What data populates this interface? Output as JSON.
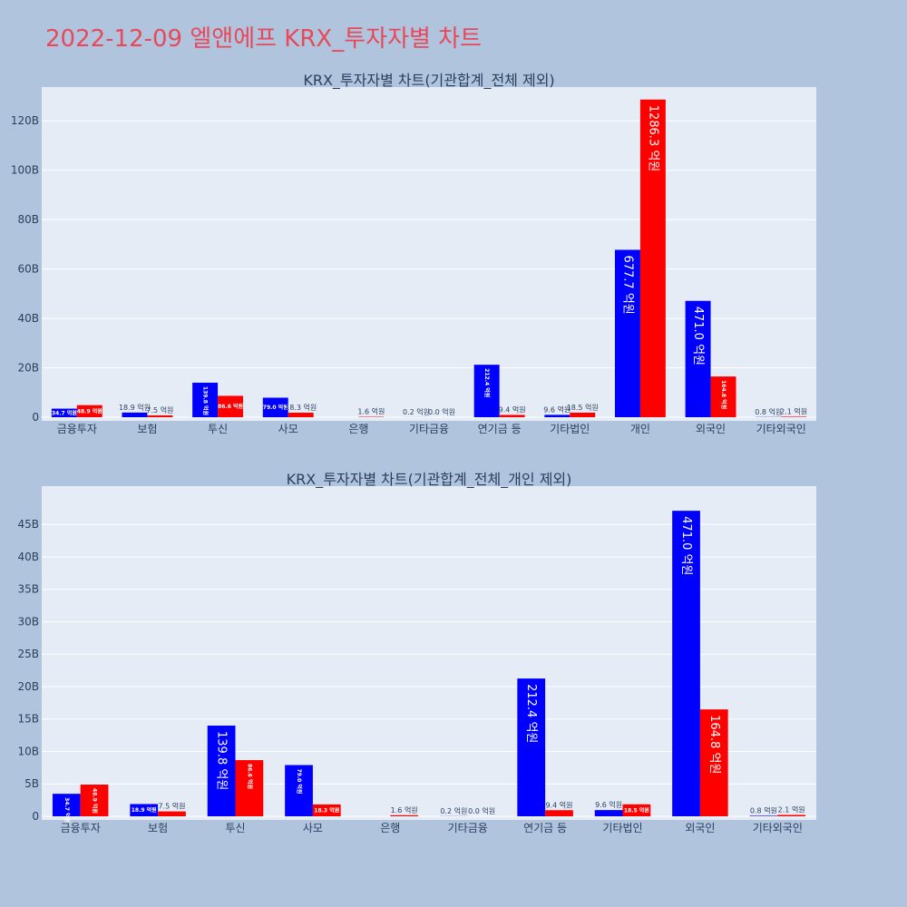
{
  "title": "2022-12-09 엘앤에프 KRX_투자자별 차트",
  "colors": {
    "series_1": "#0000ff",
    "series_2": "#ff0000",
    "plot_bg": "#e5ecf6",
    "page_bg": "#b0c4de",
    "title": "#e8495a"
  },
  "chart_data": [
    {
      "type": "bar",
      "title": "KRX_투자자별 차트(기관합계_전체 제외)",
      "categories": [
        "금융투자",
        "보험",
        "투신",
        "사모",
        "은행",
        "기타금융",
        "연기금 등",
        "기타법인",
        "개인",
        "외국인",
        "기타외국인"
      ],
      "ylim": [
        0,
        130
      ],
      "yticks": [
        0,
        20,
        40,
        60,
        80,
        100,
        120
      ],
      "ytick_labels": [
        "0",
        "20B",
        "40B",
        "60B",
        "80B",
        "100B",
        "120B"
      ],
      "series": [
        {
          "values": [
            3.47,
            1.89,
            13.98,
            7.9,
            0.0,
            0.02,
            21.24,
            0.96,
            67.77,
            47.1,
            0.08
          ],
          "labels": [
            "34.7 억원",
            "18.9 억원",
            "139.8 억원",
            "79.0 억원",
            "",
            "0.2 억원",
            "212.4 억원",
            "9.6 억원",
            "677.7 억원",
            "471.0 억원",
            "0.8 억원"
          ]
        },
        {
          "values": [
            4.89,
            0.75,
            8.66,
            1.83,
            0.16,
            0.0,
            0.94,
            1.85,
            128.63,
            16.48,
            0.21
          ],
          "labels": [
            "48.9 억원",
            "7.5 억원",
            "86.6 억원",
            "18.3 억원",
            "1.6 억원",
            "0.0 억원",
            "9.4 억원",
            "18.5 억원",
            "1286.3 억원",
            "164.8 억원",
            "2.1 억원"
          ]
        }
      ]
    },
    {
      "type": "bar",
      "title": "KRX_투자자별 차트(기관합계_전체_개인 제외)",
      "categories": [
        "금융투자",
        "보험",
        "투신",
        "사모",
        "은행",
        "기타금융",
        "연기금 등",
        "기타법인",
        "외국인",
        "기타외국인"
      ],
      "ylim": [
        0,
        49.5
      ],
      "yticks": [
        0,
        5,
        10,
        15,
        20,
        25,
        30,
        35,
        40,
        45
      ],
      "ytick_labels": [
        "0",
        "5B",
        "10B",
        "15B",
        "20B",
        "25B",
        "30B",
        "35B",
        "40B",
        "45B"
      ],
      "series": [
        {
          "values": [
            3.47,
            1.89,
            13.98,
            7.9,
            0.0,
            0.02,
            21.24,
            0.96,
            47.1,
            0.08
          ],
          "labels": [
            "34.7 억원",
            "18.9 억원",
            "139.8 억원",
            "79.0 억원",
            "",
            "0.2 억원",
            "212.4 억원",
            "9.6 억원",
            "471.0 억원",
            "0.8 억원"
          ]
        },
        {
          "values": [
            4.89,
            0.75,
            8.66,
            1.83,
            0.16,
            0.0,
            0.94,
            1.85,
            16.48,
            0.21
          ],
          "labels": [
            "48.9 억원",
            "7.5 억원",
            "86.6 억원",
            "18.3 억원",
            "1.6 억원",
            "0.0 억원",
            "9.4 억원",
            "18.5 억원",
            "164.8 억원",
            "2.1 억원"
          ]
        }
      ]
    }
  ]
}
